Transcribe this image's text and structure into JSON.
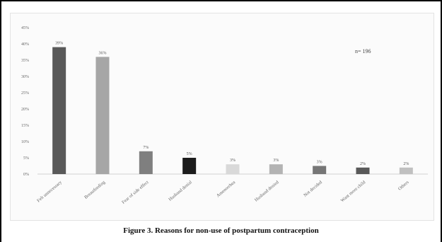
{
  "caption": "Figure 3. Reasons for non-use of postpartum contraception",
  "chart_data": {
    "type": "bar",
    "title": "",
    "xlabel": "",
    "ylabel": "",
    "annotation": "n= 196",
    "ylim": [
      0,
      45
    ],
    "yticks": [
      "0%",
      "5%",
      "10%",
      "15%",
      "20%",
      "25%",
      "30%",
      "35%",
      "40%",
      "45%"
    ],
    "categories": [
      "Felt unnecessary",
      "Breastfeeding",
      "Fear of side effect",
      "Husband denial",
      "Amenorrhea",
      "Husband denied",
      "Not decided",
      "Want more child",
      "Others"
    ],
    "values": [
      39,
      36,
      7,
      5,
      3,
      3,
      2.5,
      2,
      2
    ],
    "data_labels": [
      "39%",
      "36%",
      "7%",
      "5%",
      "3%",
      "3%",
      "3%",
      "2%",
      "2%"
    ],
    "colors": [
      "#595959",
      "#a6a6a6",
      "#7f7f7f",
      "#1c1c1c",
      "#d9d9d9",
      "#b3b3b3",
      "#767676",
      "#595959",
      "#c0c0c0"
    ],
    "grid": false,
    "legend": "none"
  }
}
